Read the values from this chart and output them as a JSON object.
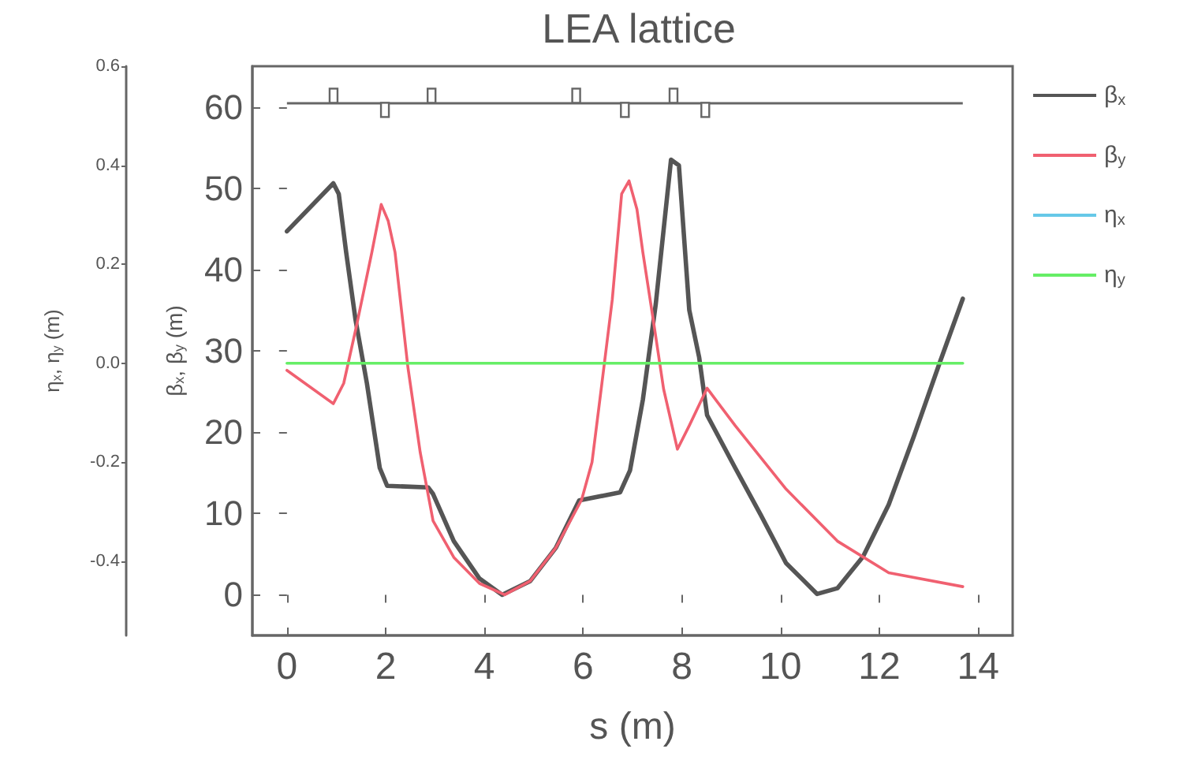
{
  "chart_data": {
    "type": "line",
    "title": "LEA lattice",
    "xlabel": "s (m)",
    "ylabel": "β$_{x}$, β$_{y}$ (m)",
    "y2label": "η$_{x}$, η$_{y}$ (m)",
    "xlim": [
      -0.7,
      14.7
    ],
    "xticks": [
      0,
      2,
      4,
      6,
      8,
      10,
      12,
      14
    ],
    "ylim": [
      -5,
      65
    ],
    "yticks": [
      0,
      10,
      20,
      30,
      40,
      50,
      60
    ],
    "y2lim": [
      -0.55,
      0.6
    ],
    "y2ticks": [
      -0.4,
      -0.2,
      {
        "value": 0,
        "label": "0.0"
      },
      0.2,
      0.4,
      0.6
    ],
    "legend": "right",
    "ref_lines": [
      {
        "axis": "y",
        "value": 60.5,
        "color": "#666666"
      }
    ],
    "marker": "none",
    "line_style": "solid",
    "series": [
      {
        "name": "β$_{x}$",
        "color": "#555555",
        "x": [
          0,
          0.94,
          1.05,
          1.2,
          1.39,
          1.62,
          1.88,
          2.03,
          2.86,
          2.96,
          3.38,
          3.9,
          4.36,
          4.93,
          5.45,
          5.92,
          6.75,
          6.95,
          7.21,
          7.47,
          7.78,
          7.94,
          8.15,
          8.35,
          8.51,
          9.08,
          9.6,
          10.11,
          10.74,
          11.15,
          11.67,
          12.19,
          12.7,
          13.22,
          13.69
        ],
        "values": [
          44.7,
          50.6,
          49.3,
          42.1,
          33.8,
          26,
          15.6,
          13.4,
          13.2,
          12.4,
          6.6,
          2,
          0,
          1.7,
          5.8,
          11.6,
          12.6,
          15.3,
          24,
          35.7,
          53.5,
          52.8,
          35,
          29.2,
          22.1,
          15.6,
          9.8,
          3.9,
          0.1,
          0.8,
          4.7,
          11.1,
          19.5,
          28.5,
          36.4
        ]
      },
      {
        "name": "β$_{y}$",
        "color": "#f06070",
        "x": [
          0,
          0.94,
          1.15,
          1.41,
          1.72,
          1.91,
          2.05,
          2.19,
          2.45,
          2.7,
          2.96,
          3.38,
          3.9,
          4.41,
          4.93,
          5.45,
          5.97,
          6.18,
          6.38,
          6.59,
          6.78,
          6.93,
          7.09,
          7.21,
          7.42,
          7.63,
          7.91,
          8.15,
          8.51,
          9.08,
          10.11,
          11.15,
          12.19,
          13.69
        ],
        "values": [
          27.6,
          23.5,
          26,
          33.1,
          42.1,
          48,
          46,
          42.1,
          28,
          17.5,
          9.1,
          4.6,
          1.4,
          0,
          1.7,
          5.8,
          11.7,
          16.3,
          26,
          36.3,
          49.3,
          50.9,
          47.4,
          42.1,
          33.8,
          25.3,
          17.9,
          20.8,
          25.4,
          20.8,
          13,
          6.6,
          2.7,
          1
        ]
      },
      {
        "name": "η$_{x}$",
        "color": "#66c8e8",
        "axis": "y2"
      },
      {
        "name": "η$_{y}$",
        "color": "#66ee66",
        "axis": "y2",
        "x": [
          0,
          13.69
        ],
        "values": [
          0,
          0
        ]
      }
    ]
  }
}
